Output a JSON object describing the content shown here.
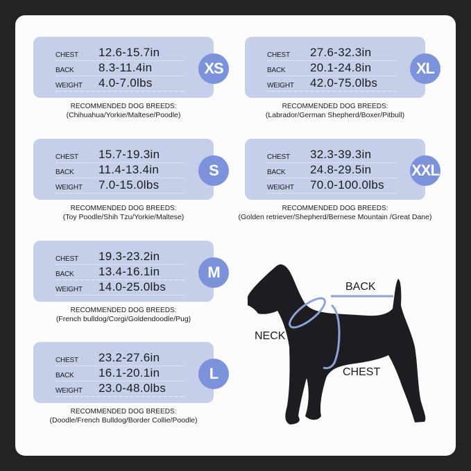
{
  "labels": {
    "chest": "CHEST",
    "back": "BACK",
    "weight": "WEIGHT",
    "breeds_heading": "RECOMMENDED DOG BREEDS:"
  },
  "sizes": [
    {
      "size": "XS",
      "chest": "12.6-15.7in",
      "back": "8.3-11.4in",
      "weight": "4.0-7.0lbs",
      "breeds": "(Chihuahua/Yorkie/Maltese/Poodle)"
    },
    {
      "size": "XL",
      "chest": "27.6-32.3in",
      "back": "20.1-24.8in",
      "weight": "42.0-75.0lbs",
      "breeds": "(Labrador/German Shepherd/Boxer/Pitbull)"
    },
    {
      "size": "S",
      "chest": "15.7-19.3in",
      "back": "11.4-13.4in",
      "weight": "7.0-15.0lbs",
      "breeds": "(Toy Poodle/Shih Tzu/Yorkie/Maltese)"
    },
    {
      "size": "XXL",
      "chest": "32.3-39.3in",
      "back": "24.8-29.5in",
      "weight": "70.0-100.0lbs",
      "breeds": "(Golden retriever/Shepherd/Bernese Mountain /Great Dane)"
    },
    {
      "size": "M",
      "chest": "19.3-23.2in",
      "back": "13.4-16.1in",
      "weight": "14.0-25.0lbs",
      "breeds": "(French bulldog/Corgi/Goldendoodle/Pug)"
    },
    {
      "size": "L",
      "chest": "23.2-27.6in",
      "back": "16.1-20.1in",
      "weight": "23.0-48.0lbs",
      "breeds": "(Doodle/French Bulldog/Border Collie/Poodle)"
    }
  ],
  "diagram": {
    "back": "BACK",
    "neck": "NECK",
    "chest": "CHEST"
  },
  "colors": {
    "card": "#c6cfea",
    "badge": "#7c93dc",
    "background": "#232323",
    "panel": "#fbfbfb",
    "dog": "#1c1c22"
  }
}
